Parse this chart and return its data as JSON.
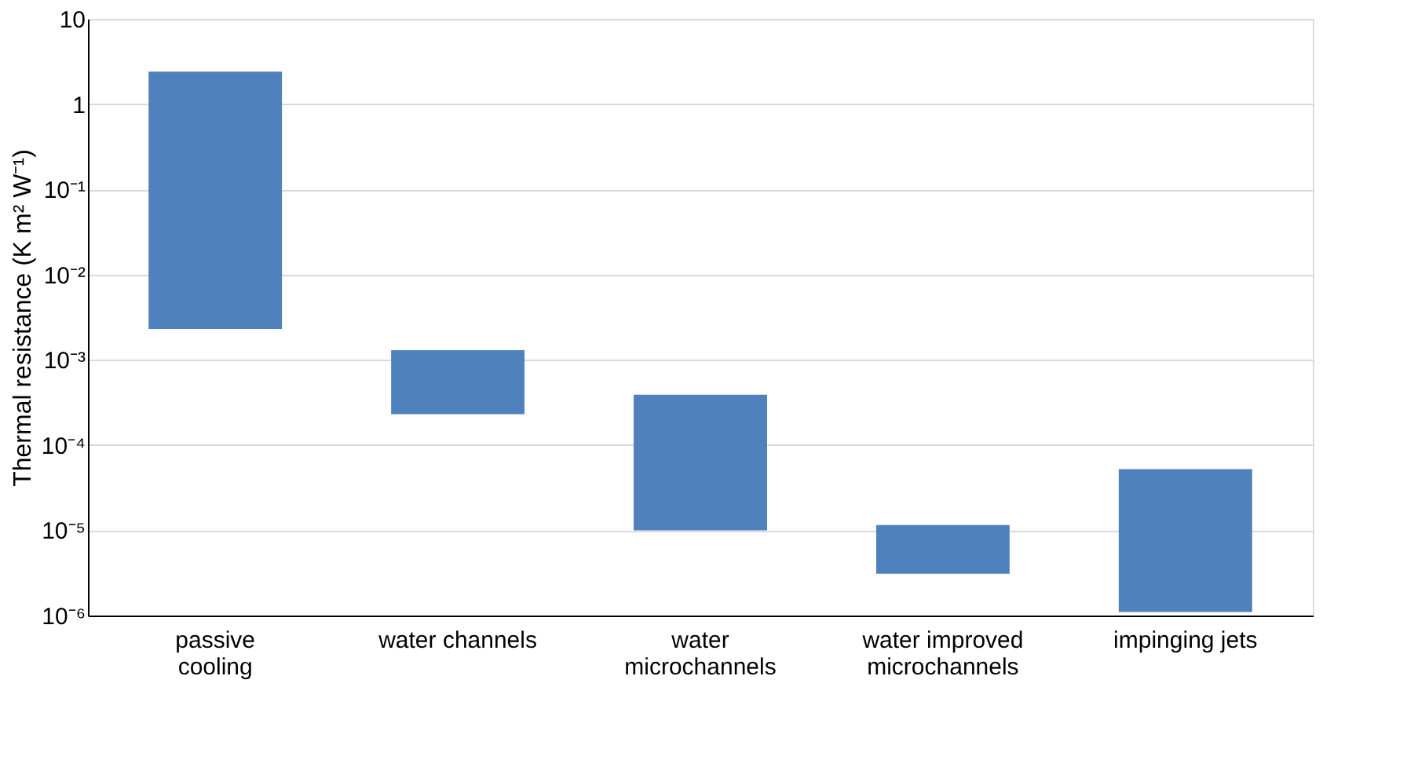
{
  "chart_data": {
    "type": "bar",
    "ylabel": "Thermal resistance (K m² W⁻¹)",
    "categories": [
      "passive cooling",
      "water channels",
      "water microchannels",
      "water improved microchannels",
      "impinging jets"
    ],
    "base": [
      0.0023,
      0.00023,
      1e-05,
      3.1e-06,
      1.1e-06
    ],
    "values": [
      2.4,
      0.00107,
      0.00038,
      8.4e-06,
      5.1e-05
    ],
    "color": "#4f81bd",
    "log": true,
    "ylim": [
      1e-06,
      10
    ],
    "yticks": [
      {
        "value": 1e-06,
        "label": "10⁻⁶"
      },
      {
        "value": 1e-05,
        "label": "10⁻⁵"
      },
      {
        "value": 0.0001,
        "label": "10⁻⁴"
      },
      {
        "value": 0.001,
        "label": "10⁻³"
      },
      {
        "value": 0.01,
        "label": "10⁻²"
      },
      {
        "value": 0.1,
        "label": "10⁻¹"
      },
      {
        "value": 1,
        "label": "1"
      },
      {
        "value": 10,
        "label": "10"
      }
    ],
    "grid": "y"
  }
}
